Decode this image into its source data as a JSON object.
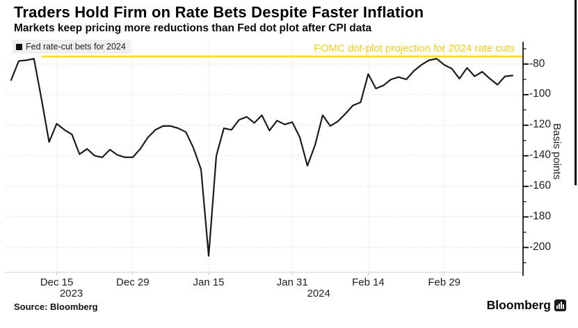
{
  "header": {
    "title": "Traders Hold Firm on Rate Bets Despite Faster Inflation",
    "subtitle": "Markets keep pricing more reductions than Fed dot plot after CPI data"
  },
  "legend": {
    "marker": "black-square",
    "label": "Fed rate-cut bets for 2024"
  },
  "annotation": {
    "label": "FOMC dot-plot projection for 2024 rate cuts"
  },
  "chart_data": {
    "type": "line",
    "title": "Traders Hold Firm on Rate Bets Despite Faster Inflation",
    "subtitle": "Markets keep pricing more reductions than Fed dot plot after CPI data",
    "ylabel": "Basis points",
    "unit": "basis points",
    "ylim": [
      -215,
      -70
    ],
    "y_ticks": [
      -80,
      -100,
      -120,
      -140,
      -160,
      -180,
      -200
    ],
    "y_minor_tick_step": 10,
    "grid": true,
    "legend_position": "top-left",
    "x_ticks": [
      {
        "label": "Dec 15",
        "index": 6,
        "year": "2023"
      },
      {
        "label": "Dec 29",
        "index": 16
      },
      {
        "label": "Jan 15",
        "index": 26
      },
      {
        "label": "Jan 31",
        "index": 37,
        "year": "2024"
      },
      {
        "label": "Feb 14",
        "index": 47
      },
      {
        "label": "Feb 29",
        "index": 57
      }
    ],
    "reference_line": {
      "label": "FOMC dot-plot projection for 2024 rate cuts",
      "value": -75,
      "color": "#ffe100",
      "start_index": 4
    },
    "series": [
      {
        "name": "Fed rate-cut bets for 2024",
        "color": "#1b1b1b",
        "values": [
          -90.5,
          -78,
          -77.5,
          -76.5,
          -103,
          -131,
          -119,
          -123,
          -126,
          -139,
          -135.5,
          -140,
          -141,
          -136,
          -139.5,
          -141,
          -141,
          -135.5,
          -128,
          -123,
          -120.5,
          -120.5,
          -122,
          -124.5,
          -135,
          -149,
          -205.5,
          -140,
          -122,
          -123,
          -116.5,
          -114.5,
          -118.5,
          -113.5,
          -123.5,
          -117,
          -119.5,
          -118,
          -128,
          -146.5,
          -133,
          -113.5,
          -120.5,
          -117.5,
          -112.5,
          -107,
          -105,
          -86.5,
          -96,
          -94,
          -90,
          -88.5,
          -90,
          -84.5,
          -80.5,
          -77.5,
          -76.5,
          -80.5,
          -83,
          -89.5,
          -82.5,
          -88,
          -85,
          -89.5,
          -93.5,
          -88,
          -87.5
        ]
      }
    ]
  },
  "footer": {
    "source": "Source: Bloomberg",
    "brand": "Bloomberg",
    "brand_icon": "bloomberg-bars-icon"
  },
  "colors": {
    "accent_yellow": "#ffe100",
    "annotation_text": "#f6cf00",
    "series_line": "#1b1b1b",
    "grid": "#d8d8d8",
    "legend_bg": "#f0f0ef",
    "axis": "#000000",
    "background": "#ffffff"
  }
}
